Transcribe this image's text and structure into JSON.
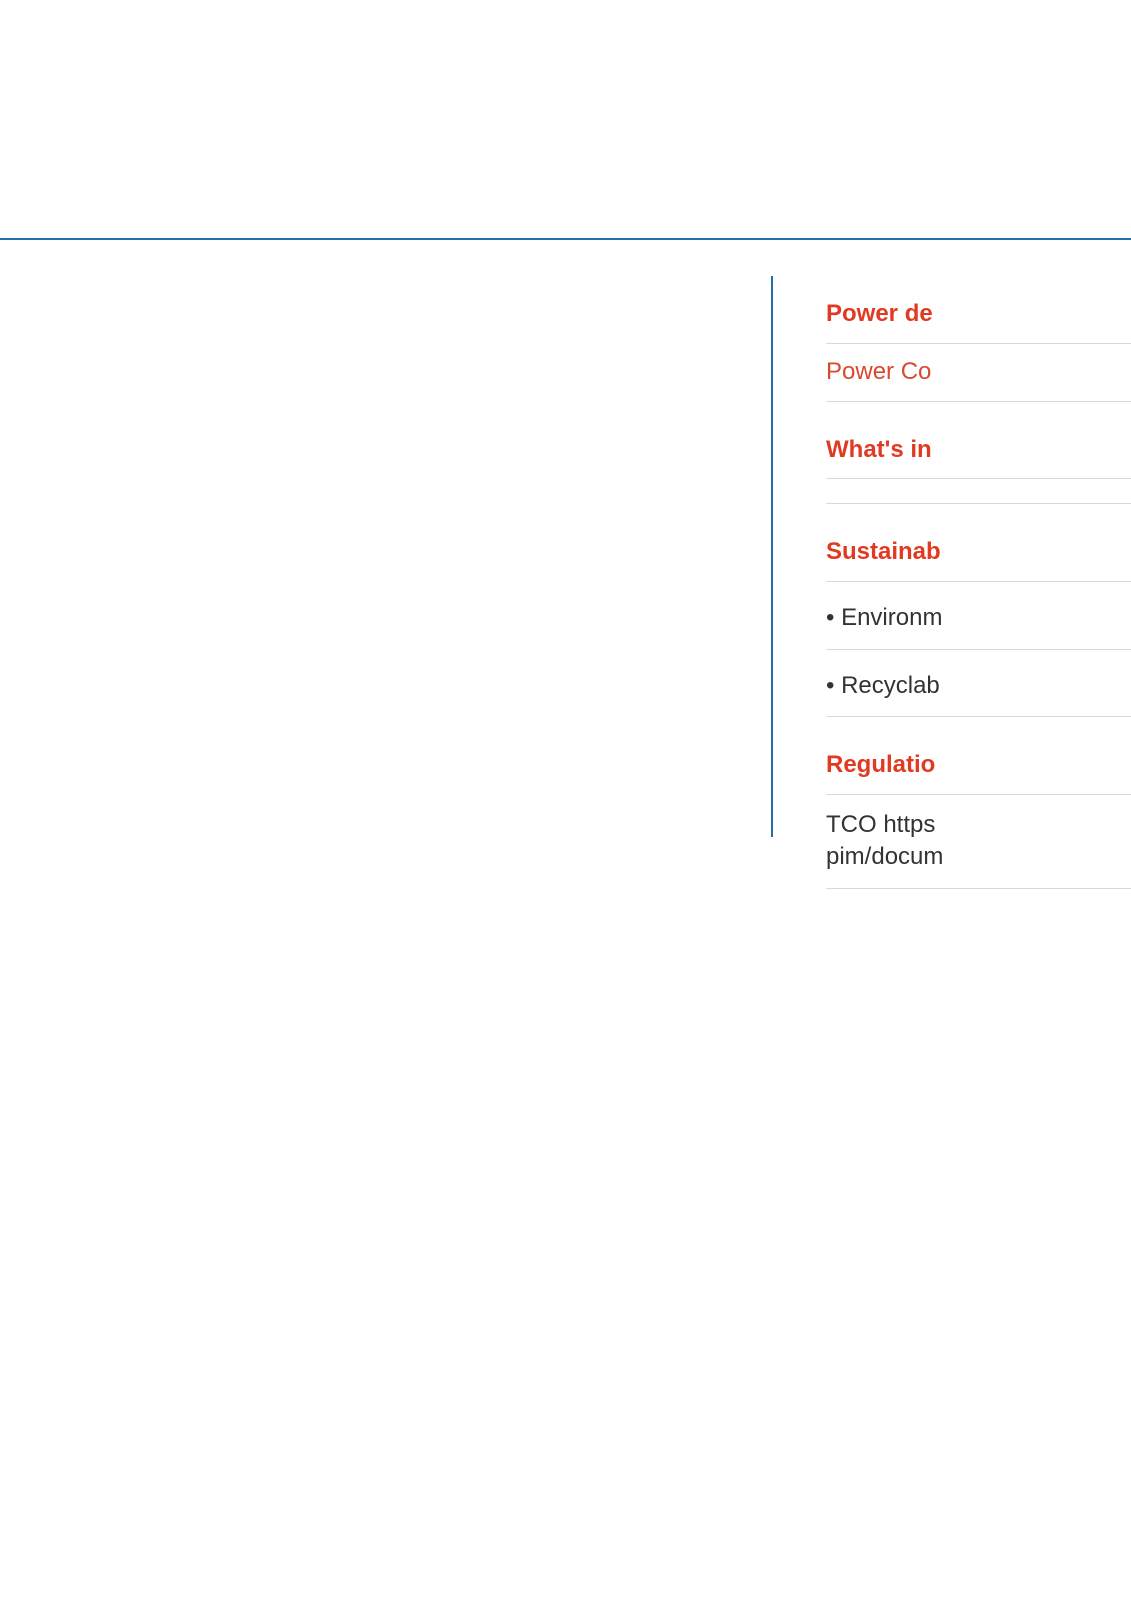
{
  "colors": {
    "accent_red": "#e23a22",
    "link_red": "#d84a30",
    "body_text": "#333333",
    "rule_gray": "#d9d9d9",
    "top_rule": "#236fa6",
    "vrule": "#236fa6",
    "background": "#ffffff"
  },
  "sections": {
    "power": {
      "heading": "Power de",
      "link": "Power Co"
    },
    "whats_in": {
      "heading": "What's in"
    },
    "sustain": {
      "heading": "Sustainab",
      "bullets": [
        "• Environm",
        "• Recyclab"
      ]
    },
    "reg": {
      "heading": "Regulatio",
      "body_l1": "TCO https",
      "body_l2": "pim/docum"
    }
  }
}
